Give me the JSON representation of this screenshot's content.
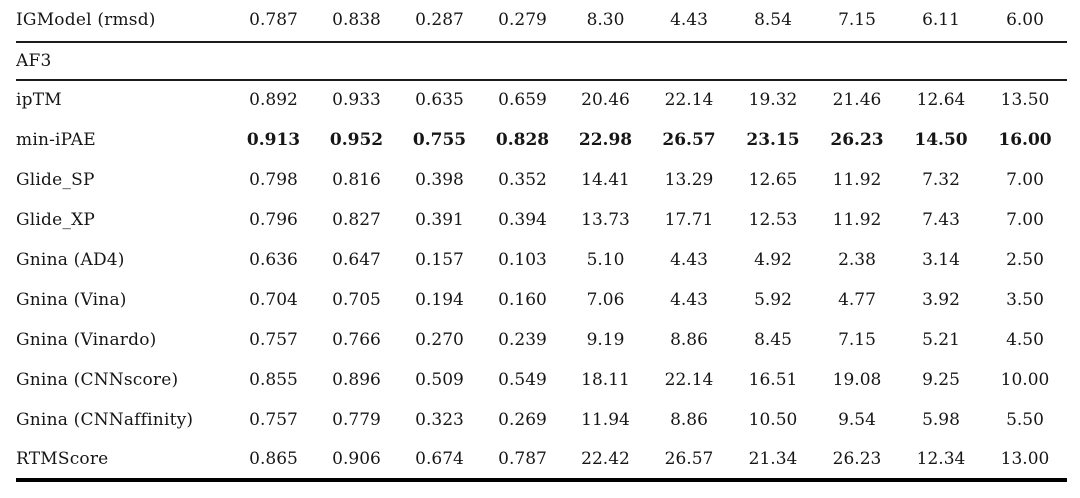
{
  "table": {
    "columns_per_row": 10,
    "rows": [
      {
        "label": "IGModel (rmsd)",
        "section": false,
        "bold_values": false,
        "rule_below": true,
        "values": [
          "0.787",
          "0.838",
          "0.287",
          "0.279",
          "8.30",
          "4.43",
          "8.54",
          "7.15",
          "6.11",
          "6.00"
        ]
      },
      {
        "label": "AF3",
        "section": true,
        "bold_values": false,
        "rule_below": true,
        "values": []
      },
      {
        "label": "ipTM",
        "section": false,
        "bold_values": false,
        "rule_below": false,
        "values": [
          "0.892",
          "0.933",
          "0.635",
          "0.659",
          "20.46",
          "22.14",
          "19.32",
          "21.46",
          "12.64",
          "13.50"
        ]
      },
      {
        "label": "min-iPAE",
        "section": false,
        "bold_values": true,
        "rule_below": false,
        "values": [
          "0.913",
          "0.952",
          "0.755",
          "0.828",
          "22.98",
          "26.57",
          "23.15",
          "26.23",
          "14.50",
          "16.00"
        ]
      },
      {
        "label": "Glide_SP",
        "section": false,
        "bold_values": false,
        "rule_below": false,
        "values": [
          "0.798",
          "0.816",
          "0.398",
          "0.352",
          "14.41",
          "13.29",
          "12.65",
          "11.92",
          "7.32",
          "7.00"
        ]
      },
      {
        "label": "Glide_XP",
        "section": false,
        "bold_values": false,
        "rule_below": false,
        "values": [
          "0.796",
          "0.827",
          "0.391",
          "0.394",
          "13.73",
          "17.71",
          "12.53",
          "11.92",
          "7.43",
          "7.00"
        ]
      },
      {
        "label": "Gnina (AD4)",
        "section": false,
        "bold_values": false,
        "rule_below": false,
        "values": [
          "0.636",
          "0.647",
          "0.157",
          "0.103",
          "5.10",
          "4.43",
          "4.92",
          "2.38",
          "3.14",
          "2.50"
        ]
      },
      {
        "label": "Gnina (Vina)",
        "section": false,
        "bold_values": false,
        "rule_below": false,
        "values": [
          "0.704",
          "0.705",
          "0.194",
          "0.160",
          "7.06",
          "4.43",
          "5.92",
          "4.77",
          "3.92",
          "3.50"
        ]
      },
      {
        "label": "Gnina (Vinardo)",
        "section": false,
        "bold_values": false,
        "rule_below": false,
        "values": [
          "0.757",
          "0.766",
          "0.270",
          "0.239",
          "9.19",
          "8.86",
          "8.45",
          "7.15",
          "5.21",
          "4.50"
        ]
      },
      {
        "label": "Gnina (CNNscore)",
        "section": false,
        "bold_values": false,
        "rule_below": false,
        "values": [
          "0.855",
          "0.896",
          "0.509",
          "0.549",
          "18.11",
          "22.14",
          "16.51",
          "19.08",
          "9.25",
          "10.00"
        ]
      },
      {
        "label": "Gnina (CNNaffinity)",
        "section": false,
        "bold_values": false,
        "rule_below": false,
        "values": [
          "0.757",
          "0.779",
          "0.323",
          "0.269",
          "11.94",
          "8.86",
          "10.50",
          "9.54",
          "5.98",
          "5.50"
        ]
      },
      {
        "label": "RTMScore",
        "section": false,
        "bold_values": false,
        "rule_below": false,
        "values": [
          "0.865",
          "0.906",
          "0.674",
          "0.787",
          "22.42",
          "26.57",
          "21.34",
          "26.23",
          "12.34",
          "13.00"
        ]
      }
    ]
  }
}
